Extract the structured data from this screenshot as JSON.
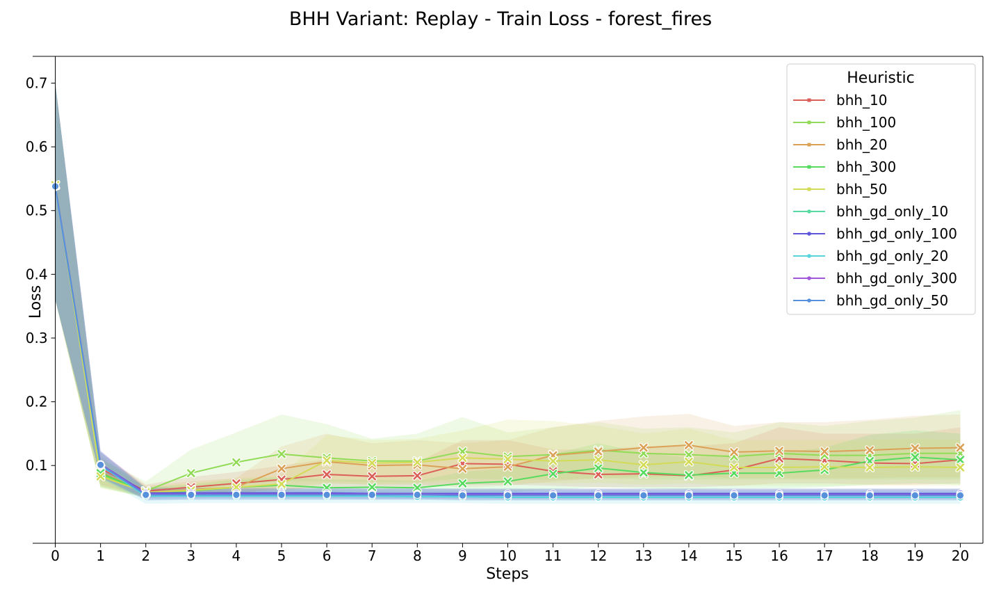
{
  "chart_data": {
    "type": "line",
    "title": "BHH Variant: Replay - Train Loss - forest_fires",
    "xlabel": "Steps",
    "ylabel": "Loss",
    "x": [
      0,
      1,
      2,
      3,
      4,
      5,
      6,
      7,
      8,
      9,
      10,
      11,
      12,
      13,
      14,
      15,
      16,
      17,
      18,
      19,
      20
    ],
    "xlim": [
      -0.5,
      20.5
    ],
    "ylim": [
      -0.022,
      0.742
    ],
    "yticks": [
      0.1,
      0.2,
      0.3,
      0.4,
      0.5,
      0.6,
      0.7
    ],
    "grid": false,
    "legend": {
      "title": "Heuristic",
      "position": "top-right"
    },
    "series": [
      {
        "name": "bhh_10",
        "color": "#db5f57",
        "marker": "x",
        "values": [
          0.54,
          0.095,
          0.06,
          0.066,
          0.072,
          0.078,
          0.086,
          0.083,
          0.084,
          0.103,
          0.102,
          0.091,
          0.086,
          0.087,
          0.084,
          0.093,
          0.111,
          0.108,
          0.104,
          0.103,
          0.109
        ],
        "lower": [
          0.36,
          0.07,
          0.052,
          0.055,
          0.058,
          0.062,
          0.066,
          0.066,
          0.066,
          0.07,
          0.07,
          0.068,
          0.066,
          0.066,
          0.066,
          0.068,
          0.072,
          0.072,
          0.07,
          0.07,
          0.072
        ],
        "upper": [
          0.7,
          0.12,
          0.07,
          0.082,
          0.09,
          0.1,
          0.11,
          0.105,
          0.105,
          0.14,
          0.14,
          0.125,
          0.125,
          0.13,
          0.13,
          0.135,
          0.16,
          0.15,
          0.15,
          0.15,
          0.16
        ]
      },
      {
        "name": "bhh_100",
        "color": "#91db57",
        "marker": "x",
        "values": [
          0.54,
          0.085,
          0.06,
          0.088,
          0.105,
          0.118,
          0.112,
          0.107,
          0.107,
          0.122,
          0.114,
          0.117,
          0.124,
          0.119,
          0.117,
          0.114,
          0.119,
          0.116,
          0.116,
          0.119,
          0.119
        ],
        "lower": [
          0.36,
          0.066,
          0.05,
          0.062,
          0.07,
          0.075,
          0.075,
          0.074,
          0.074,
          0.08,
          0.078,
          0.078,
          0.08,
          0.078,
          0.078,
          0.078,
          0.078,
          0.078,
          0.078,
          0.078,
          0.078
        ],
        "upper": [
          0.7,
          0.11,
          0.075,
          0.125,
          0.152,
          0.18,
          0.165,
          0.142,
          0.15,
          0.176,
          0.152,
          0.16,
          0.168,
          0.158,
          0.16,
          0.152,
          0.168,
          0.162,
          0.17,
          0.175,
          0.187
        ]
      },
      {
        "name": "bhh_20",
        "color": "#dba157",
        "marker": "x",
        "values": [
          0.54,
          0.09,
          0.058,
          0.062,
          0.066,
          0.095,
          0.106,
          0.1,
          0.101,
          0.095,
          0.098,
          0.116,
          0.122,
          0.128,
          0.132,
          0.121,
          0.123,
          0.122,
          0.124,
          0.127,
          0.128
        ],
        "lower": [
          0.36,
          0.068,
          0.05,
          0.052,
          0.055,
          0.066,
          0.072,
          0.07,
          0.07,
          0.066,
          0.068,
          0.075,
          0.08,
          0.082,
          0.084,
          0.08,
          0.08,
          0.08,
          0.08,
          0.082,
          0.082
        ],
        "upper": [
          0.7,
          0.115,
          0.068,
          0.075,
          0.08,
          0.13,
          0.15,
          0.135,
          0.14,
          0.135,
          0.14,
          0.16,
          0.17,
          0.177,
          0.181,
          0.162,
          0.168,
          0.168,
          0.172,
          0.178,
          0.18
        ]
      },
      {
        "name": "bhh_300",
        "color": "#57db5f",
        "marker": "x",
        "values": [
          0.54,
          0.088,
          0.058,
          0.06,
          0.066,
          0.069,
          0.065,
          0.066,
          0.065,
          0.072,
          0.075,
          0.087,
          0.096,
          0.089,
          0.085,
          0.088,
          0.088,
          0.093,
          0.107,
          0.113,
          0.109
        ],
        "lower": [
          0.36,
          0.066,
          0.05,
          0.052,
          0.055,
          0.056,
          0.055,
          0.055,
          0.055,
          0.058,
          0.058,
          0.062,
          0.066,
          0.064,
          0.062,
          0.064,
          0.064,
          0.066,
          0.07,
          0.072,
          0.07
        ],
        "upper": [
          0.7,
          0.112,
          0.066,
          0.07,
          0.078,
          0.082,
          0.078,
          0.078,
          0.076,
          0.09,
          0.095,
          0.118,
          0.135,
          0.12,
          0.112,
          0.118,
          0.12,
          0.128,
          0.148,
          0.155,
          0.15
        ]
      },
      {
        "name": "bhh_50",
        "color": "#d3db57",
        "marker": "x",
        "values": [
          0.54,
          0.083,
          0.058,
          0.061,
          0.066,
          0.071,
          0.108,
          0.104,
          0.105,
          0.112,
          0.11,
          0.107,
          0.109,
          0.101,
          0.106,
          0.097,
          0.097,
          0.098,
          0.097,
          0.098,
          0.097
        ],
        "lower": [
          0.36,
          0.064,
          0.05,
          0.052,
          0.055,
          0.058,
          0.072,
          0.07,
          0.072,
          0.075,
          0.073,
          0.072,
          0.073,
          0.07,
          0.072,
          0.068,
          0.068,
          0.068,
          0.068,
          0.068,
          0.068
        ],
        "upper": [
          0.7,
          0.108,
          0.066,
          0.072,
          0.08,
          0.085,
          0.148,
          0.14,
          0.142,
          0.155,
          0.172,
          0.17,
          0.162,
          0.15,
          0.158,
          0.14,
          0.14,
          0.14,
          0.14,
          0.142,
          0.14
        ]
      },
      {
        "name": "bhh_gd_only_10",
        "color": "#57dba1",
        "marker": "o",
        "values": [
          0.538,
          0.1,
          0.055,
          0.055,
          0.055,
          0.055,
          0.055,
          0.055,
          0.055,
          0.055,
          0.055,
          0.055,
          0.055,
          0.055,
          0.055,
          0.055,
          0.055,
          0.055,
          0.055,
          0.055,
          0.055
        ],
        "lower": [
          0.36,
          0.08,
          0.046,
          0.047,
          0.047,
          0.047,
          0.047,
          0.047,
          0.047,
          0.046,
          0.046,
          0.046,
          0.046,
          0.046,
          0.046,
          0.046,
          0.046,
          0.046,
          0.046,
          0.046,
          0.046
        ],
        "upper": [
          0.7,
          0.122,
          0.065,
          0.064,
          0.064,
          0.064,
          0.064,
          0.064,
          0.064,
          0.064,
          0.064,
          0.064,
          0.064,
          0.064,
          0.064,
          0.064,
          0.064,
          0.064,
          0.064,
          0.064,
          0.064
        ]
      },
      {
        "name": "bhh_gd_only_100",
        "color": "#5f57db",
        "marker": "o",
        "values": [
          0.538,
          0.102,
          0.057,
          0.057,
          0.057,
          0.057,
          0.057,
          0.056,
          0.056,
          0.056,
          0.056,
          0.056,
          0.056,
          0.056,
          0.056,
          0.056,
          0.056,
          0.056,
          0.056,
          0.056,
          0.056
        ],
        "lower": [
          0.36,
          0.082,
          0.048,
          0.049,
          0.049,
          0.049,
          0.049,
          0.048,
          0.048,
          0.048,
          0.048,
          0.048,
          0.048,
          0.048,
          0.048,
          0.048,
          0.048,
          0.048,
          0.048,
          0.048,
          0.048
        ],
        "upper": [
          0.7,
          0.123,
          0.066,
          0.065,
          0.065,
          0.065,
          0.065,
          0.064,
          0.064,
          0.064,
          0.064,
          0.064,
          0.064,
          0.064,
          0.064,
          0.064,
          0.064,
          0.064,
          0.064,
          0.064,
          0.064
        ]
      },
      {
        "name": "bhh_gd_only_20",
        "color": "#57d3db",
        "marker": "o",
        "values": [
          0.537,
          0.1,
          0.052,
          0.052,
          0.052,
          0.052,
          0.052,
          0.052,
          0.051,
          0.051,
          0.05,
          0.05,
          0.05,
          0.05,
          0.05,
          0.05,
          0.05,
          0.05,
          0.05,
          0.05,
          0.05
        ],
        "lower": [
          0.36,
          0.08,
          0.04,
          0.041,
          0.041,
          0.041,
          0.041,
          0.041,
          0.041,
          0.041,
          0.04,
          0.04,
          0.04,
          0.04,
          0.04,
          0.04,
          0.04,
          0.04,
          0.04,
          0.04,
          0.04
        ],
        "upper": [
          0.7,
          0.12,
          0.062,
          0.061,
          0.061,
          0.061,
          0.061,
          0.061,
          0.06,
          0.06,
          0.06,
          0.06,
          0.06,
          0.06,
          0.06,
          0.06,
          0.06,
          0.06,
          0.06,
          0.06,
          0.06
        ]
      },
      {
        "name": "bhh_gd_only_300",
        "color": "#a157db",
        "marker": "o",
        "values": [
          0.538,
          0.102,
          0.055,
          0.055,
          0.055,
          0.055,
          0.055,
          0.055,
          0.055,
          0.054,
          0.054,
          0.054,
          0.054,
          0.054,
          0.054,
          0.054,
          0.054,
          0.054,
          0.054,
          0.054,
          0.054
        ],
        "lower": [
          0.36,
          0.082,
          0.046,
          0.047,
          0.047,
          0.047,
          0.047,
          0.047,
          0.047,
          0.046,
          0.046,
          0.046,
          0.046,
          0.046,
          0.046,
          0.046,
          0.046,
          0.046,
          0.046,
          0.046,
          0.046
        ],
        "upper": [
          0.7,
          0.123,
          0.064,
          0.064,
          0.064,
          0.064,
          0.064,
          0.064,
          0.064,
          0.063,
          0.063,
          0.063,
          0.063,
          0.063,
          0.063,
          0.063,
          0.063,
          0.063,
          0.063,
          0.063,
          0.063
        ]
      },
      {
        "name": "bhh_gd_only_50",
        "color": "#5791db",
        "marker": "o",
        "values": [
          0.538,
          0.101,
          0.054,
          0.054,
          0.054,
          0.054,
          0.054,
          0.054,
          0.054,
          0.053,
          0.053,
          0.053,
          0.053,
          0.053,
          0.053,
          0.053,
          0.053,
          0.053,
          0.053,
          0.053,
          0.053
        ],
        "lower": [
          0.36,
          0.081,
          0.045,
          0.046,
          0.046,
          0.046,
          0.046,
          0.046,
          0.046,
          0.045,
          0.045,
          0.045,
          0.045,
          0.045,
          0.045,
          0.045,
          0.045,
          0.045,
          0.045,
          0.045,
          0.045
        ],
        "upper": [
          0.7,
          0.122,
          0.063,
          0.063,
          0.063,
          0.063,
          0.063,
          0.063,
          0.063,
          0.062,
          0.062,
          0.062,
          0.062,
          0.062,
          0.062,
          0.062,
          0.062,
          0.062,
          0.062,
          0.062,
          0.062
        ]
      }
    ]
  }
}
